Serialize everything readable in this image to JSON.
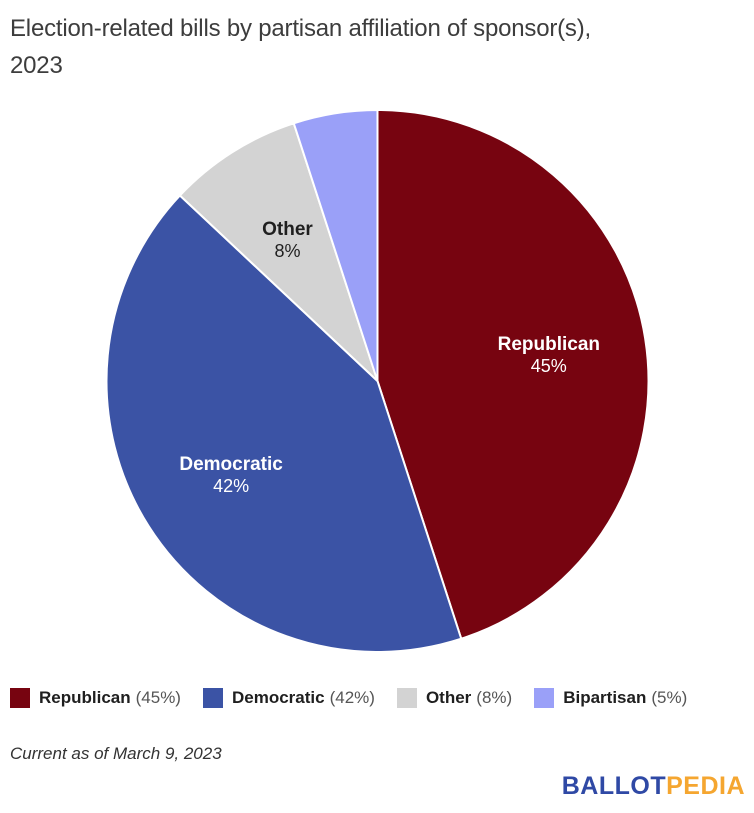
{
  "header": {
    "title": "Election-related bills by partisan affiliation of sponsor(s),\n2023"
  },
  "chart_data": {
    "type": "pie",
    "title": "Election-related bills by partisan affiliation of sponsor(s), 2023",
    "units": "percent",
    "start_angle_deg": 0,
    "direction": "clockwise",
    "legend_position": "bottom",
    "slices": [
      {
        "label": "Republican",
        "value": 45,
        "pct_label": "45%",
        "legend_pct": "(45%)",
        "color": "#770410",
        "label_color": "#ffffff",
        "slice_label_shown": true
      },
      {
        "label": "Democratic",
        "value": 42,
        "pct_label": "42%",
        "legend_pct": "(42%)",
        "color": "#3b53a5",
        "label_color": "#ffffff",
        "slice_label_shown": true
      },
      {
        "label": "Other",
        "value": 8,
        "pct_label": "8%",
        "legend_pct": "(8%)",
        "color": "#d3d3d3",
        "label_color": "#1f1f1f",
        "slice_label_shown": true
      },
      {
        "label": "Bipartisan",
        "value": 5,
        "pct_label": "5%",
        "legend_pct": "(5%)",
        "color": "#9aa0f8",
        "label_color": "#1f1f1f",
        "slice_label_shown": false
      }
    ]
  },
  "footnote": "Current as of March 9, 2023",
  "logo": {
    "part1": "BALLOT",
    "part2": "PEDIA",
    "part1_color": "#2f49a5",
    "part2_color": "#f5a630"
  }
}
